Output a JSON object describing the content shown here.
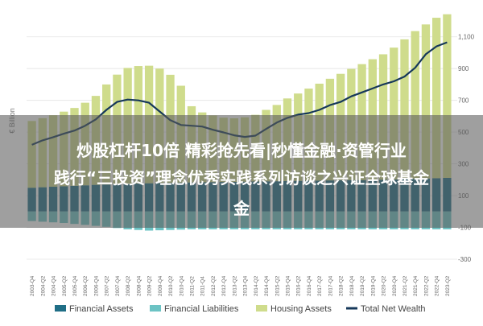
{
  "chart_data": {
    "type": "bar",
    "ylabel": "€ Billion",
    "ylim": [
      -300,
      1200
    ],
    "y_ticks": [
      -300,
      -100,
      100,
      300,
      500,
      700,
      900,
      1100
    ],
    "y_tick_labels": [
      "-300",
      "-100",
      "100",
      "300",
      "500",
      "700",
      "900",
      "1,100"
    ],
    "x": [
      "2003-Q4",
      "2004-Q2",
      "2004-Q4",
      "2005-Q2",
      "2005-Q4",
      "2006-Q2",
      "2006-Q4",
      "2007-Q2",
      "2007-Q4",
      "2008-Q2",
      "2008-Q4",
      "2009-Q2",
      "2009-Q4",
      "2010-Q2",
      "2010-Q4",
      "2011-Q2",
      "2011-Q4",
      "2012-Q2",
      "2012-Q4",
      "2013-Q2",
      "2013-Q4",
      "2014-Q2",
      "2014-Q4",
      "2015-Q2",
      "2015-Q4",
      "2016-Q2",
      "2016-Q4",
      "2017-Q2",
      "2017-Q4",
      "2018-Q2",
      "2018-Q4",
      "2019-Q2",
      "2019-Q4",
      "2020-Q2",
      "2020-Q4",
      "2021-Q2",
      "2021-Q4",
      "2022-Q2",
      "2022-Q4",
      "2023-Q2"
    ],
    "x_tick_labels": [
      "2003-Q4",
      "2004-Q2",
      "2004-Q4",
      "2005-Q2",
      "2005-Q4",
      "2006-Q2",
      "2006-Q4",
      "2007-Q2",
      "2007-Q4",
      "2008-Q2",
      "2008-Q4",
      "2009-Q2",
      "2009-Q4",
      "2010-Q2",
      "2010-Q4",
      "2011-Q2",
      "2011-Q4",
      "2012-Q2",
      "2012-Q4",
      "2013-Q2",
      "2013-Q4",
      "2014-Q2",
      "2014-Q4",
      "2015-Q2",
      "2015-Q4",
      "2016-Q2",
      "2016-Q4",
      "2017-Q2",
      "2017-Q4",
      "2018-Q2",
      "2018-Q4",
      "2019-Q2",
      "2019-Q4",
      "2020-Q2",
      "2020-Q4",
      "2021-Q2",
      "2021-Q4",
      "2022-Q2",
      "2022-Q4",
      "2023-Q2"
    ],
    "series": [
      {
        "name": "Financial Assets",
        "color": "#1f6e86",
        "values": [
          150,
          153,
          156,
          159,
          162,
          165,
          168,
          170,
          172,
          174,
          176,
          178,
          180,
          181,
          182,
          183,
          184,
          185,
          186,
          187,
          188,
          189,
          190,
          191,
          192,
          193,
          194,
          195,
          196,
          197,
          198,
          198,
          199,
          200,
          202,
          204,
          206,
          208,
          210,
          212
        ]
      },
      {
        "name": "Financial Liabilities",
        "color": "#6cc3c4",
        "values": [
          -60,
          -64,
          -68,
          -72,
          -78,
          -84,
          -90,
          -96,
          -104,
          -112,
          -116,
          -120,
          -118,
          -116,
          -114,
          -112,
          -112,
          -112,
          -112,
          -112,
          -112,
          -112,
          -112,
          -112,
          -112,
          -112,
          -112,
          -112,
          -112,
          -112,
          -112,
          -112,
          -112,
          -112,
          -112,
          -112,
          -112,
          -112,
          -112,
          -112
        ]
      },
      {
        "name": "Housing Assets",
        "color": "#cfdc8c",
        "values": [
          420,
          435,
          450,
          470,
          490,
          520,
          560,
          630,
          690,
          730,
          740,
          740,
          720,
          680,
          610,
          480,
          440,
          420,
          405,
          400,
          405,
          420,
          450,
          480,
          520,
          550,
          580,
          610,
          640,
          670,
          700,
          730,
          760,
          790,
          830,
          880,
          930,
          970,
          1010,
          1030
        ]
      }
    ],
    "net_wealth": {
      "name": "Total Net Wealth",
      "color": "#16385a",
      "values": [
        420,
        448,
        468,
        490,
        510,
        540,
        580,
        640,
        690,
        705,
        700,
        685,
        630,
        575,
        545,
        540,
        535,
        515,
        498,
        480,
        470,
        478,
        520,
        560,
        590,
        610,
        620,
        640,
        670,
        690,
        725,
        750,
        775,
        800,
        820,
        850,
        905,
        990,
        1040,
        1065
      ]
    },
    "legend": {
      "position": "bottom",
      "items": [
        {
          "label": "Financial Assets",
          "color": "#1f6e86",
          "kind": "box"
        },
        {
          "label": "Financial Liabilities",
          "color": "#6cc3c4",
          "kind": "box"
        },
        {
          "label": "Housing Assets",
          "color": "#cfdc8c",
          "kind": "box"
        },
        {
          "label": "Total Net Wealth",
          "color": "#16385a",
          "kind": "line"
        }
      ]
    },
    "grid": true
  },
  "overlay": {
    "line1": "炒股杠杆10倍 精彩抢先看|秒懂金融·资管行业",
    "line2": "践行“三投资”理念优秀实践系列访谈之兴证全球基金",
    "line3": "金"
  }
}
